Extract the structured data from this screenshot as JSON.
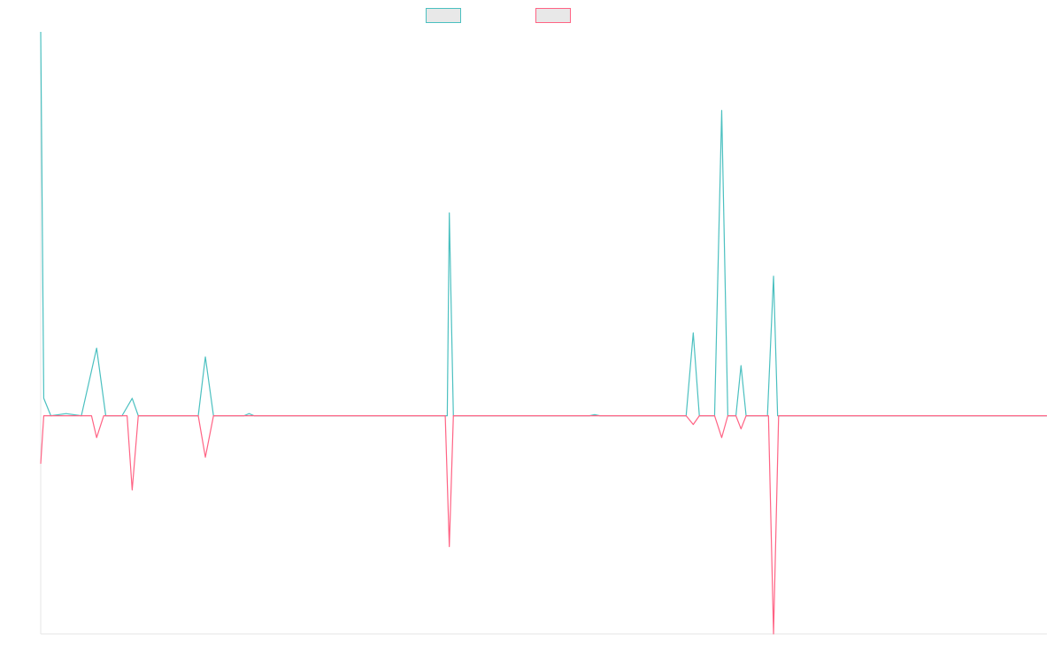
{
  "chart_data": {
    "type": "line",
    "title": "",
    "xlabel": "",
    "ylabel": "",
    "grid": false,
    "legend_position": "top-center",
    "y_range": [
      -1,
      1.76
    ],
    "x_count": 100,
    "series": [
      {
        "key": "positive",
        "color": "#4bc0c0",
        "legend_fill": "#e8e8e8",
        "points": [
          [
            0,
            1.76
          ],
          [
            0.3,
            0.08
          ],
          [
            1,
            0
          ],
          [
            2.5,
            0.01
          ],
          [
            4,
            0
          ],
          [
            5.5,
            0.31
          ],
          [
            6.4,
            0
          ],
          [
            8,
            0
          ],
          [
            9,
            0.08
          ],
          [
            9.6,
            0
          ],
          [
            11,
            0
          ],
          [
            15.5,
            0
          ],
          [
            16.2,
            0.27
          ],
          [
            17,
            0
          ],
          [
            20,
            0
          ],
          [
            20.5,
            0.01
          ],
          [
            21,
            0
          ],
          [
            40,
            0
          ],
          [
            40.2,
            0.93
          ],
          [
            40.6,
            0
          ],
          [
            54,
            0
          ],
          [
            54.5,
            0.005
          ],
          [
            55,
            0
          ],
          [
            63.5,
            0
          ],
          [
            64.2,
            0.38
          ],
          [
            64.8,
            0
          ],
          [
            66.3,
            0
          ],
          [
            67,
            1.4
          ],
          [
            67.6,
            0
          ],
          [
            68.4,
            0
          ],
          [
            68.9,
            0.23
          ],
          [
            69.4,
            0
          ],
          [
            71.5,
            0
          ],
          [
            72.1,
            0.64
          ],
          [
            72.5,
            0
          ],
          [
            99,
            0
          ]
        ]
      },
      {
        "key": "negative",
        "color": "#ff6384",
        "legend_fill": "#e8e8e8",
        "points": [
          [
            0,
            -0.22
          ],
          [
            0.3,
            0
          ],
          [
            5,
            0
          ],
          [
            5.5,
            -0.1
          ],
          [
            6.2,
            0
          ],
          [
            8.5,
            0
          ],
          [
            9,
            -0.34
          ],
          [
            9.6,
            0
          ],
          [
            15.5,
            0
          ],
          [
            16.2,
            -0.19
          ],
          [
            17,
            0
          ],
          [
            39.8,
            0
          ],
          [
            40.2,
            -0.6
          ],
          [
            40.6,
            0
          ],
          [
            63.5,
            0
          ],
          [
            64.2,
            -0.04
          ],
          [
            64.8,
            0
          ],
          [
            66.3,
            0
          ],
          [
            67,
            -0.1
          ],
          [
            67.6,
            0
          ],
          [
            68.4,
            0
          ],
          [
            68.9,
            -0.06
          ],
          [
            69.4,
            0
          ],
          [
            71.6,
            0
          ],
          [
            72.1,
            -1
          ],
          [
            72.6,
            0
          ],
          [
            99,
            0
          ]
        ]
      }
    ]
  }
}
